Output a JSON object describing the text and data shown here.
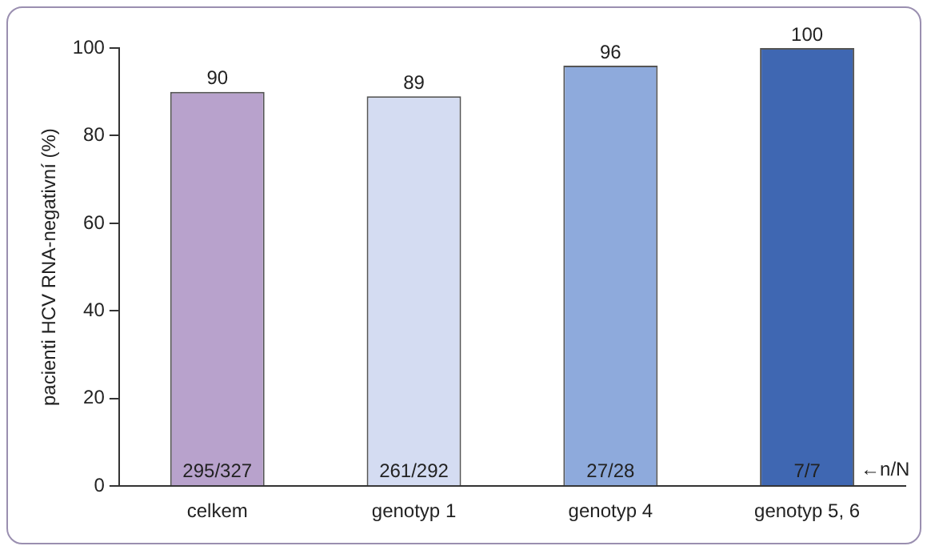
{
  "chart_data": {
    "type": "bar",
    "ylabel": "pacienti HCV RNA-negativní (%)",
    "categories": [
      "celkem",
      "genotyp 1",
      "genotyp 4",
      "genotyp 5, 6"
    ],
    "values": [
      90,
      89,
      96,
      100
    ],
    "colors": [
      "#b8a2cc",
      "#d4dcf2",
      "#8eaadc",
      "#3f67b2"
    ],
    "ylim": [
      0,
      100
    ],
    "yticks": [
      0,
      20,
      40,
      60,
      80,
      100
    ],
    "grid": false,
    "data_labels": true,
    "annotations": [
      "295/327",
      "261/292",
      "27/28",
      "7/7",
      "←n/N"
    ]
  }
}
